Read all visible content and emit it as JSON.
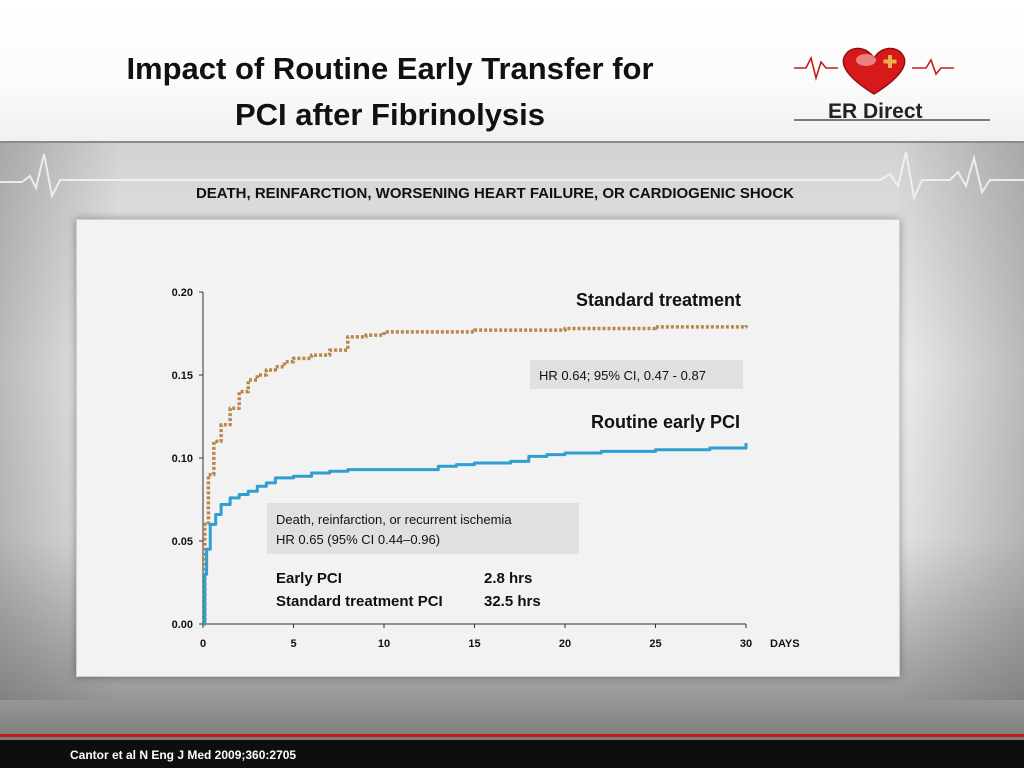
{
  "slide": {
    "title_line1": "Impact of Routine Early Transfer for",
    "title_line2": "PCI after Fibrinolysis",
    "logo_text": "ER Direct",
    "subtitle": "DEATH, REINFARCTION, WORSENING HEART FAILURE, OR CARDIOGENIC SHOCK",
    "citation": "Cantor et al  N Eng J Med 2009;360:2705"
  },
  "colors": {
    "standard": "#b8884a",
    "early": "#2e9fd1",
    "accent_red": "#c0201c"
  },
  "annotations": {
    "standard_label": "Standard treatment",
    "standard_hr": "HR 0.64; 95% CI, 0.47 - 0.87",
    "early_label": "Routine early PCI",
    "box_line1": "Death, reinfarction, or recurrent ischemia",
    "box_line2": "HR 0.65 (95% CI 0.44–0.96)",
    "times": [
      {
        "label": "Early PCI",
        "value": "2.8 hrs"
      },
      {
        "label": "Standard treatment PCI",
        "value": "32.5 hrs"
      }
    ]
  },
  "chart_data": {
    "type": "line",
    "title": "DEATH, REINFARCTION, WORSENING HEART FAILURE, OR CARDIOGENIC SHOCK",
    "xlabel": "DAYS",
    "ylabel": "",
    "xlim": [
      0,
      30
    ],
    "ylim": [
      0,
      0.2
    ],
    "xticks": [
      0,
      5,
      10,
      15,
      20,
      25,
      30
    ],
    "xtick_labels": [
      "0",
      "5",
      "10",
      "15",
      "20",
      "25",
      "30"
    ],
    "yticks": [
      0,
      0.05,
      0.1,
      0.15,
      0.2
    ],
    "ytick_labels": [
      "0.00",
      "0.05",
      "0.10",
      "0.15",
      "0.20"
    ],
    "grid": false,
    "series": [
      {
        "name": "Standard treatment",
        "style": "dotted",
        "x": [
          0,
          0.1,
          0.3,
          0.6,
          1,
          1.5,
          2,
          2.5,
          3,
          3.5,
          4,
          4.5,
          5,
          6,
          7,
          8,
          9,
          10,
          12,
          15,
          20,
          25,
          30
        ],
        "y": [
          0,
          0.06,
          0.09,
          0.11,
          0.12,
          0.13,
          0.14,
          0.147,
          0.15,
          0.153,
          0.155,
          0.158,
          0.16,
          0.162,
          0.165,
          0.173,
          0.174,
          0.176,
          0.176,
          0.177,
          0.178,
          0.179,
          0.18
        ]
      },
      {
        "name": "Routine early PCI",
        "style": "solid",
        "x": [
          0,
          0.1,
          0.2,
          0.4,
          0.7,
          1,
          1.5,
          2,
          2.5,
          3,
          3.5,
          4,
          5,
          6,
          7,
          8,
          10,
          12,
          13,
          14,
          15,
          17,
          18,
          19,
          20,
          22,
          25,
          28,
          30
        ],
        "y": [
          0,
          0.03,
          0.045,
          0.06,
          0.066,
          0.072,
          0.076,
          0.078,
          0.08,
          0.083,
          0.085,
          0.088,
          0.089,
          0.091,
          0.092,
          0.093,
          0.093,
          0.093,
          0.095,
          0.096,
          0.097,
          0.098,
          0.101,
          0.102,
          0.103,
          0.104,
          0.105,
          0.106,
          0.109
        ]
      }
    ]
  }
}
